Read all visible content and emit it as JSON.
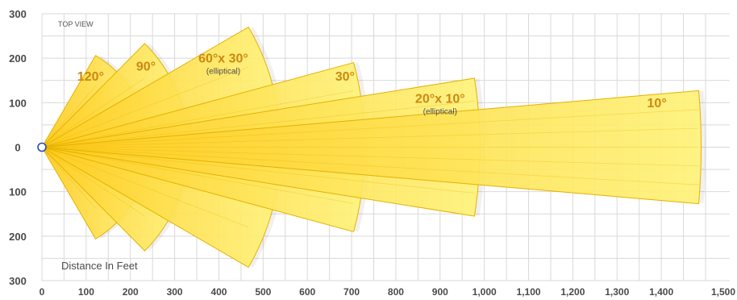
{
  "diagram": {
    "corner_label": "TOP VIEW",
    "axis_note": "Distance In Feet",
    "x_ticks": [
      {
        "value": 0,
        "label": "0"
      },
      {
        "value": 100,
        "label": "100"
      },
      {
        "value": 200,
        "label": "200"
      },
      {
        "value": 300,
        "label": "300"
      },
      {
        "value": 400,
        "label": "400"
      },
      {
        "value": 500,
        "label": "500"
      },
      {
        "value": 600,
        "label": "600"
      },
      {
        "value": 700,
        "label": "700"
      },
      {
        "value": 800,
        "label": "800"
      },
      {
        "value": 900,
        "label": "900"
      },
      {
        "value": 1000,
        "label": "1,000"
      },
      {
        "value": 1100,
        "label": "1,100"
      },
      {
        "value": 1200,
        "label": "1,200"
      },
      {
        "value": 1300,
        "label": "1,300"
      },
      {
        "value": 1400,
        "label": "1,400"
      },
      {
        "value": 1500,
        "label": "1,500"
      }
    ],
    "y_ticks": [
      {
        "value": 300,
        "label": "300"
      },
      {
        "value": 200,
        "label": "200"
      },
      {
        "value": 100,
        "label": "100"
      },
      {
        "value": 0,
        "label": "0"
      },
      {
        "value": -100,
        "label": "100"
      },
      {
        "value": -200,
        "label": "200"
      },
      {
        "value": -300,
        "label": "300"
      }
    ],
    "x_range": [
      0,
      1500
    ],
    "y_range": [
      -300,
      300
    ],
    "beams": [
      {
        "label": "120°",
        "sub": "",
        "angle_deg": 120,
        "range_ft": 240,
        "tip_half_width_ft": 206,
        "label_pos": [
          110,
          150
        ]
      },
      {
        "label": "90°",
        "sub": "",
        "angle_deg": 90,
        "range_ft": 330,
        "tip_half_width_ft": 233,
        "label_pos": [
          235,
          172
        ]
      },
      {
        "label": "60°x 30°",
        "sub": "(elliptical)",
        "angle_deg": 60,
        "range_ft": 540,
        "tip_half_width_ft": 270,
        "label_pos": [
          410,
          190
        ]
      },
      {
        "label": "30°",
        "sub": "",
        "angle_deg": 30,
        "range_ft": 730,
        "tip_half_width_ft": 190,
        "label_pos": [
          685,
          150
        ]
      },
      {
        "label": "20°x 10°",
        "sub": "(elliptical)",
        "angle_deg": 20,
        "range_ft": 990,
        "tip_half_width_ft": 155,
        "label_pos": [
          900,
          100
        ]
      },
      {
        "label": "10°",
        "sub": "",
        "angle_deg": 10,
        "range_ft": 1490,
        "tip_half_width_ft": 127,
        "label_pos": [
          1390,
          90
        ]
      }
    ],
    "colors": {
      "beam_fill_light": "#fff37a",
      "beam_fill_dark": "#ffcc1f",
      "beam_stroke": "#e5b200",
      "label": "#c98a12",
      "grid": "#d9d9d9",
      "origin_marker": "#2b4da8"
    }
  }
}
